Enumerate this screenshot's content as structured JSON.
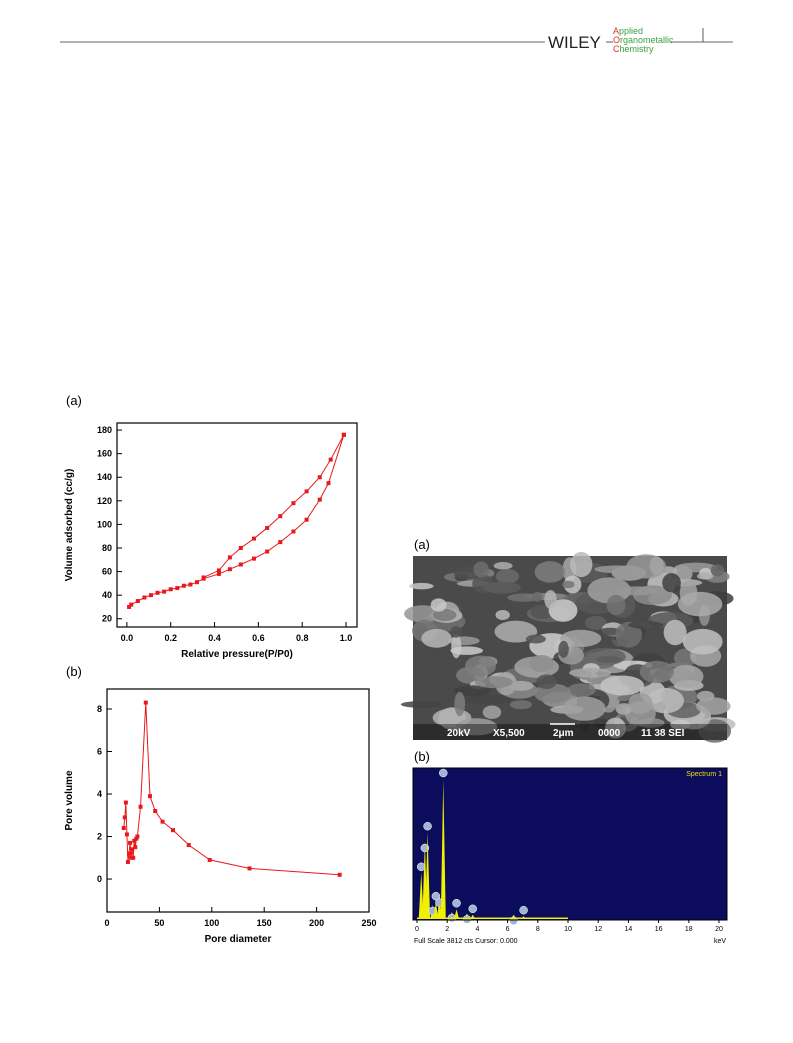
{
  "header": {
    "brand": "WILEY",
    "journal": [
      "Applied",
      "Organometallic",
      "Chemistry"
    ]
  },
  "chart_data": [
    {
      "type": "line",
      "panel": "(a)",
      "x_label": "Relative pressure(P/P0)",
      "y_label": "Volume adsorbed (cc/g)",
      "xlim": [
        -0.045,
        1.05
      ],
      "ylim": [
        13,
        186
      ],
      "xticks": [
        {
          "value": 0,
          "label": "0.0"
        },
        0.2,
        0.4,
        0.6,
        0.8,
        {
          "value": 1,
          "label": "1.0"
        }
      ],
      "yticks": [
        20,
        40,
        60,
        80,
        100,
        120,
        140,
        160,
        180
      ],
      "series": [
        {
          "color": "#e8191b",
          "x": [
            0.01,
            0.02,
            0.05,
            0.08,
            0.11,
            0.14,
            0.17,
            0.2,
            0.23,
            0.26,
            0.29,
            0.32,
            0.35,
            0.42,
            0.47,
            0.52,
            0.58,
            0.64,
            0.7,
            0.76,
            0.82,
            0.88,
            0.92,
            0.99
          ],
          "values": [
            30,
            32,
            35,
            38,
            40,
            42,
            43,
            45,
            46,
            48,
            49,
            51,
            54,
            58,
            62,
            66,
            71,
            77,
            85,
            94,
            104,
            121,
            135,
            176
          ]
        },
        {
          "color": "#e8191b",
          "x": [
            0.99,
            0.93,
            0.88,
            0.82,
            0.76,
            0.7,
            0.64,
            0.58,
            0.52,
            0.47,
            0.42,
            0.35
          ],
          "values": [
            176,
            155,
            140,
            128,
            118,
            107,
            97,
            88,
            80,
            72,
            61,
            55
          ]
        }
      ]
    },
    {
      "type": "line",
      "panel": "(b)",
      "x_label": "Pore diameter",
      "y_label": "Pore volume",
      "xlim": [
        0,
        250
      ],
      "ylim": [
        -1.55,
        8.94
      ],
      "xticks": [
        0,
        50,
        100,
        150,
        200,
        250
      ],
      "yticks": [
        0,
        2,
        4,
        6,
        8
      ],
      "series": [
        {
          "color": "#e8191b",
          "x": [
            16,
            17,
            18,
            19,
            20,
            21,
            22,
            23,
            24,
            25,
            26,
            27,
            28,
            29,
            32,
            37,
            41,
            46,
            53,
            63,
            78,
            98,
            136,
            222
          ],
          "values": [
            2.4,
            2.9,
            3.6,
            2.1,
            0.8,
            1.2,
            1.7,
            1.0,
            1.4,
            1.0,
            1.8,
            1.5,
            1.9,
            2.0,
            3.4,
            8.3,
            3.9,
            3.2,
            2.7,
            2.3,
            1.6,
            0.9,
            0.5,
            0.2
          ]
        }
      ]
    },
    {
      "type": "spectrum",
      "panel": "(b)",
      "title": "Spectrum 1",
      "x_label": "keV",
      "footer": "Full Scale 3812 cts Cursor: 0.000",
      "xlim": [
        0,
        20.5
      ],
      "ylim": [
        0,
        100
      ],
      "color": "#f0f000",
      "xticks": [
        0,
        2,
        4,
        6,
        8,
        10,
        12,
        14,
        16,
        18,
        20
      ],
      "x": [
        0.28,
        0.52,
        0.7,
        1.04,
        1.25,
        1.49,
        1.74,
        2.31,
        2.62,
        3.31,
        3.69,
        6.4,
        7.06
      ],
      "values": [
        33,
        55,
        62,
        10,
        12,
        16,
        100,
        5,
        7,
        4,
        3,
        3,
        2
      ]
    }
  ],
  "sem": {
    "panel": "(a)",
    "labels": [
      "20kV",
      "X5,500",
      "2μm",
      "0000",
      "11 38 SEI"
    ]
  }
}
